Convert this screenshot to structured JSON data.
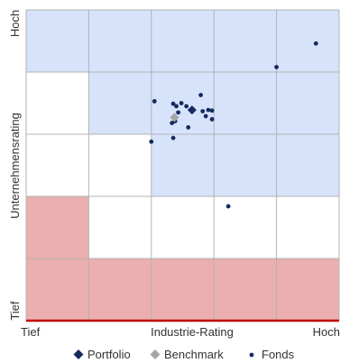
{
  "chart_data": {
    "type": "scatter",
    "xlabel": "Industrie-Rating",
    "ylabel": "Unternehmensrating",
    "x_ticks": {
      "low": "Tief",
      "high": "Hoch"
    },
    "y_ticks": {
      "low": "Tief",
      "high": "Hoch"
    },
    "xlim": [
      0,
      5
    ],
    "ylim": [
      0,
      5
    ],
    "grid": true,
    "legend_position": "bottom",
    "zones": [
      {
        "x": [
          0,
          1
        ],
        "y": [
          4,
          5
        ],
        "color": "#d6e3fb"
      },
      {
        "x": [
          1,
          2
        ],
        "y": [
          4,
          5
        ],
        "color": "#d6e3fb"
      },
      {
        "x": [
          2,
          3
        ],
        "y": [
          4,
          5
        ],
        "color": "#d6e3fb"
      },
      {
        "x": [
          3,
          4
        ],
        "y": [
          4,
          5
        ],
        "color": "#d6e3fb"
      },
      {
        "x": [
          4,
          5
        ],
        "y": [
          4,
          5
        ],
        "color": "#d6e3fb"
      },
      {
        "x": [
          1,
          2
        ],
        "y": [
          3,
          4
        ],
        "color": "#d6e3fb"
      },
      {
        "x": [
          2,
          3
        ],
        "y": [
          3,
          4
        ],
        "color": "#d6e3fb"
      },
      {
        "x": [
          3,
          4
        ],
        "y": [
          3,
          4
        ],
        "color": "#d6e3fb"
      },
      {
        "x": [
          4,
          5
        ],
        "y": [
          3,
          4
        ],
        "color": "#d6e3fb"
      },
      {
        "x": [
          2,
          3
        ],
        "y": [
          2,
          3
        ],
        "color": "#d6e3fb"
      },
      {
        "x": [
          3,
          4
        ],
        "y": [
          2,
          3
        ],
        "color": "#d6e3fb"
      },
      {
        "x": [
          4,
          5
        ],
        "y": [
          2,
          3
        ],
        "color": "#d6e3fb"
      },
      {
        "x": [
          0,
          1
        ],
        "y": [
          1,
          2
        ],
        "color": "#ebafb0"
      },
      {
        "x": [
          0,
          1
        ],
        "y": [
          0,
          1
        ],
        "color": "#ebafb0"
      },
      {
        "x": [
          1,
          2
        ],
        "y": [
          0,
          1
        ],
        "color": "#ebafb0"
      },
      {
        "x": [
          2,
          3
        ],
        "y": [
          0,
          1
        ],
        "color": "#ebafb0"
      },
      {
        "x": [
          3,
          4
        ],
        "y": [
          0,
          1
        ],
        "color": "#ebafb0"
      },
      {
        "x": [
          4,
          5
        ],
        "y": [
          0,
          1
        ],
        "color": "#ebafb0"
      }
    ],
    "series": [
      {
        "name": "Portfolio",
        "marker": "diamond",
        "color": "#152a5c",
        "points": [
          [
            2.65,
            3.39
          ]
        ]
      },
      {
        "name": "Benchmark",
        "marker": "diamond",
        "color": "#a5a5a5",
        "points": [
          [
            2.37,
            3.27
          ]
        ]
      },
      {
        "name": "Fonds",
        "marker": "dot",
        "color": "#152a5c",
        "points": [
          [
            4.63,
            4.46
          ],
          [
            4.0,
            4.08
          ],
          [
            2.79,
            3.63
          ],
          [
            2.05,
            3.53
          ],
          [
            2.35,
            3.49
          ],
          [
            2.48,
            3.5
          ],
          [
            2.4,
            3.45
          ],
          [
            2.56,
            3.45
          ],
          [
            2.82,
            3.37
          ],
          [
            2.91,
            3.39
          ],
          [
            2.97,
            3.38
          ],
          [
            2.43,
            3.35
          ],
          [
            2.87,
            3.29
          ],
          [
            2.97,
            3.24
          ],
          [
            2.33,
            3.18
          ],
          [
            2.38,
            3.21
          ],
          [
            2.59,
            3.11
          ],
          [
            2.35,
            2.94
          ],
          [
            2.0,
            2.88
          ],
          [
            3.23,
            1.84
          ]
        ]
      }
    ],
    "threshold_line": {
      "y": 0,
      "color": "#c00000"
    }
  }
}
